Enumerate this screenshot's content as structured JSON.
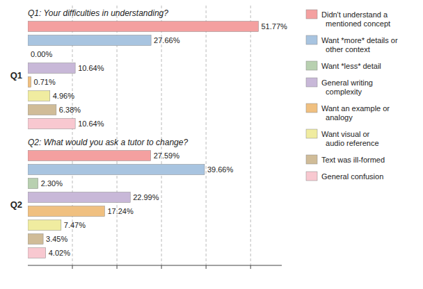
{
  "chart_data": {
    "type": "bar",
    "orientation": "horizontal",
    "categories": [
      "Q1",
      "Q2"
    ],
    "annotations": [
      "Q1: Your difficulties in understanding?",
      "Q2: What would you ask a tutor to change?"
    ],
    "series": [
      {
        "name": "Didn't understand a\n  mentioned concept",
        "color": "#f4a0a0",
        "values": [
          51.77,
          27.59
        ],
        "value_labels": [
          "51.77%",
          "27.59%"
        ]
      },
      {
        "name": "Want *more* details or\n  other context",
        "color": "#a8c4e0",
        "values": [
          27.66,
          39.66
        ],
        "value_labels": [
          "27.66%",
          "39.66%"
        ]
      },
      {
        "name": "Want *less* detail",
        "color": "#b8d0b0",
        "values": [
          0.0,
          2.3
        ],
        "value_labels": [
          "0.00%",
          "2.30%"
        ]
      },
      {
        "name": "General writing\n  complexity",
        "color": "#c8b8d8",
        "values": [
          10.64,
          22.99
        ],
        "value_labels": [
          "10.64%",
          "22.99%"
        ]
      },
      {
        "name": "Want an example or\n  analogy",
        "color": "#f0c080",
        "values": [
          0.71,
          17.24
        ],
        "value_labels": [
          "0.71%",
          "17.24%"
        ]
      },
      {
        "name": "Want visual or\n  audio reference",
        "color": "#f0eca0",
        "values": [
          4.96,
          7.47
        ],
        "value_labels": [
          "4.96%",
          "7.47%"
        ]
      },
      {
        "name": "Text was ill-formed",
        "color": "#d0bc98",
        "values": [
          6.38,
          3.45
        ],
        "value_labels": [
          "6.38%",
          "3.45%"
        ]
      },
      {
        "name": "General confusion",
        "color": "#f8c8d0",
        "values": [
          10.64,
          4.02
        ],
        "value_labels": [
          "10.64%",
          "4.02%"
        ]
      }
    ],
    "xlim": [
      0,
      57
    ],
    "xticks": [
      10,
      20,
      30,
      40,
      50
    ],
    "tick_labels": false,
    "grid": true,
    "data_labels": true,
    "legend": "right"
  }
}
